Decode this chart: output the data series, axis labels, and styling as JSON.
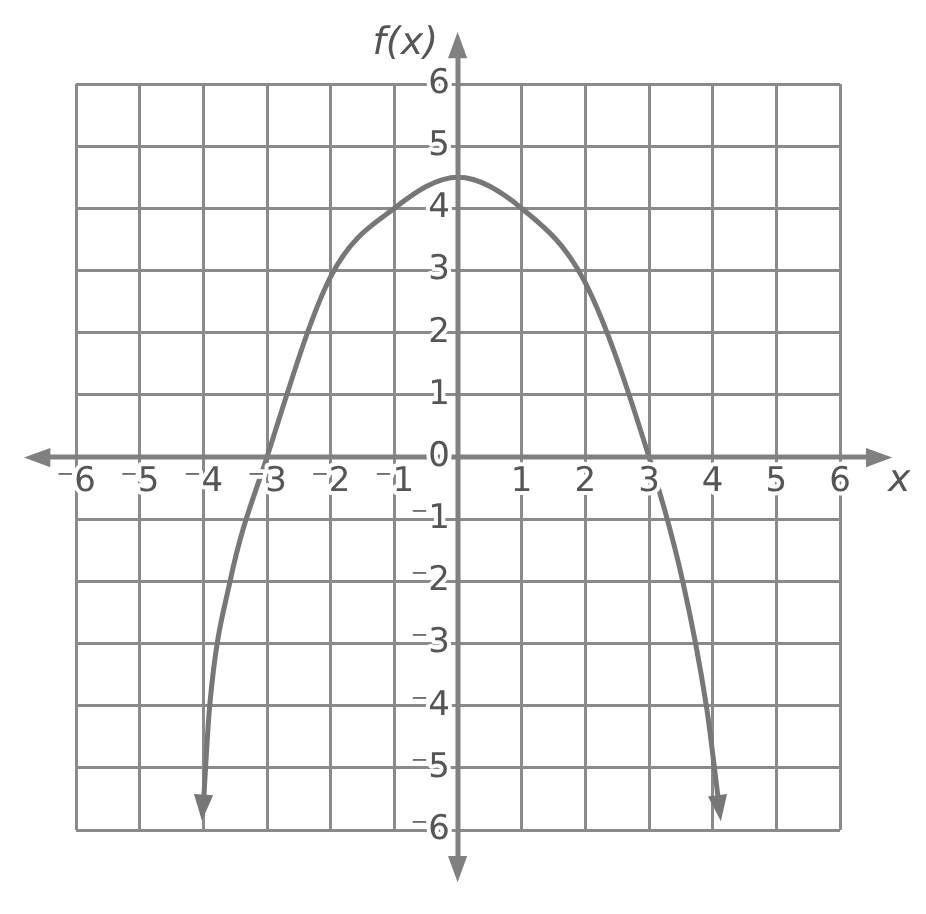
{
  "chart_data": {
    "type": "line",
    "xlabel": "x",
    "ylabel": "f(x)",
    "x": [
      -4,
      -3.9,
      -3.58,
      -3,
      -2,
      -1,
      0,
      1,
      2,
      3,
      3.53,
      3.9,
      4.1
    ],
    "series": [
      {
        "color": "#777777",
        "values": [
          -5.6,
          -4,
          -2,
          0,
          2.9,
          4,
          4.5,
          4,
          2.8,
          0,
          -2,
          -4,
          -5.6
        ]
      }
    ],
    "xlim": [
      -6,
      6
    ],
    "ylim": [
      -6,
      6
    ],
    "xticks": [
      {
        "value": -6,
        "label": "⁻6"
      },
      {
        "value": -5,
        "label": "⁻5"
      },
      {
        "value": -4,
        "label": "⁻4"
      },
      {
        "value": -3,
        "label": "⁻3"
      },
      {
        "value": -2,
        "label": "⁻2"
      },
      {
        "value": -1,
        "label": "⁻1"
      },
      {
        "value": 0,
        "label": null
      },
      1,
      2,
      3,
      4,
      5,
      6
    ],
    "yticks": [
      {
        "value": -6,
        "label": "⁻6"
      },
      {
        "value": -5,
        "label": "⁻5"
      },
      {
        "value": -4,
        "label": "⁻4"
      },
      {
        "value": -3,
        "label": "⁻3"
      },
      {
        "value": -2,
        "label": "⁻2"
      },
      {
        "value": -1,
        "label": "⁻1"
      },
      0,
      1,
      2,
      3,
      4,
      5,
      6
    ],
    "grid": true,
    "marker": "none",
    "line_style": "solid",
    "legend": false
  }
}
